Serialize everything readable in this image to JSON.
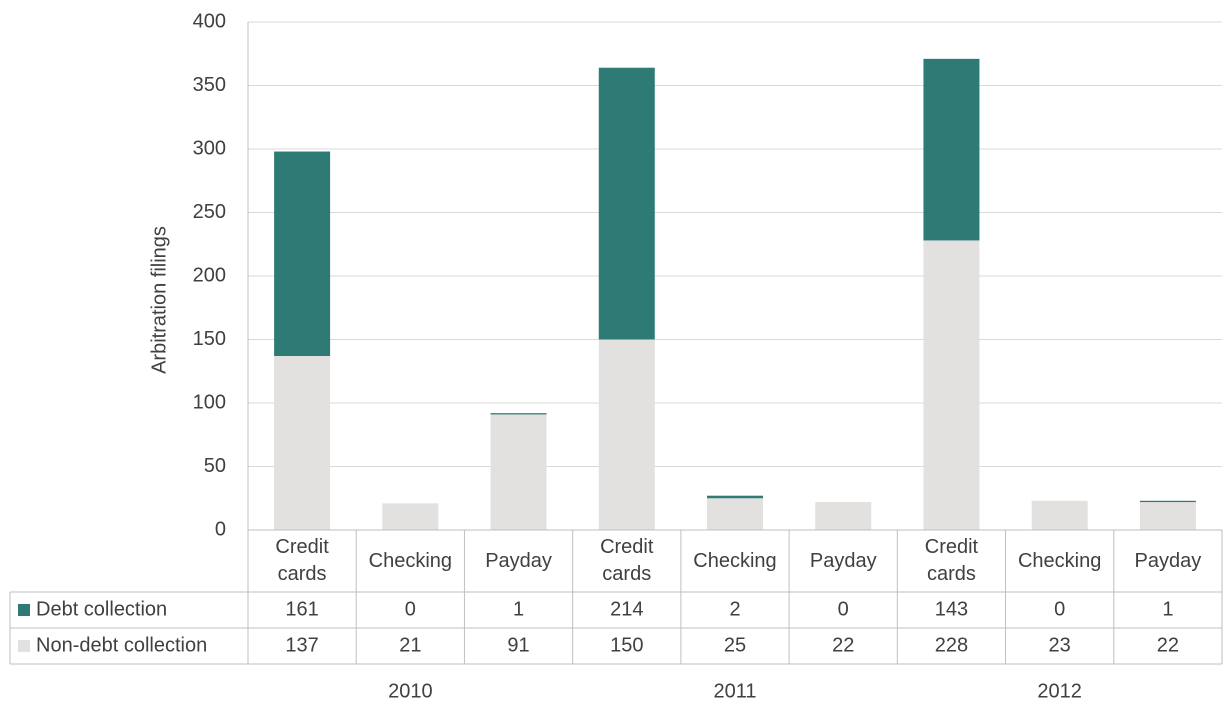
{
  "chart_data": {
    "type": "stacked-bar",
    "y_label": "Arbitration filings",
    "categories": [
      "Credit cards",
      "Checking",
      "Payday",
      "Credit cards",
      "Checking",
      "Payday",
      "Credit cards",
      "Checking",
      "Payday"
    ],
    "groups": [
      "2010",
      "2011",
      "2012"
    ],
    "series": [
      {
        "name": "Non-debt collection",
        "color": "#e3e1df",
        "values": [
          137,
          21,
          91,
          150,
          25,
          22,
          228,
          23,
          22
        ]
      },
      {
        "name": "Debt collection",
        "color": "#2e7a74",
        "values": [
          161,
          0,
          1,
          214,
          2,
          0,
          143,
          0,
          1
        ]
      }
    ],
    "table_order": [
      1,
      0
    ],
    "ylim": [
      0,
      400
    ],
    "yticks": [
      0,
      50,
      100,
      150,
      200,
      250,
      300,
      350,
      400
    ],
    "grid": true
  }
}
